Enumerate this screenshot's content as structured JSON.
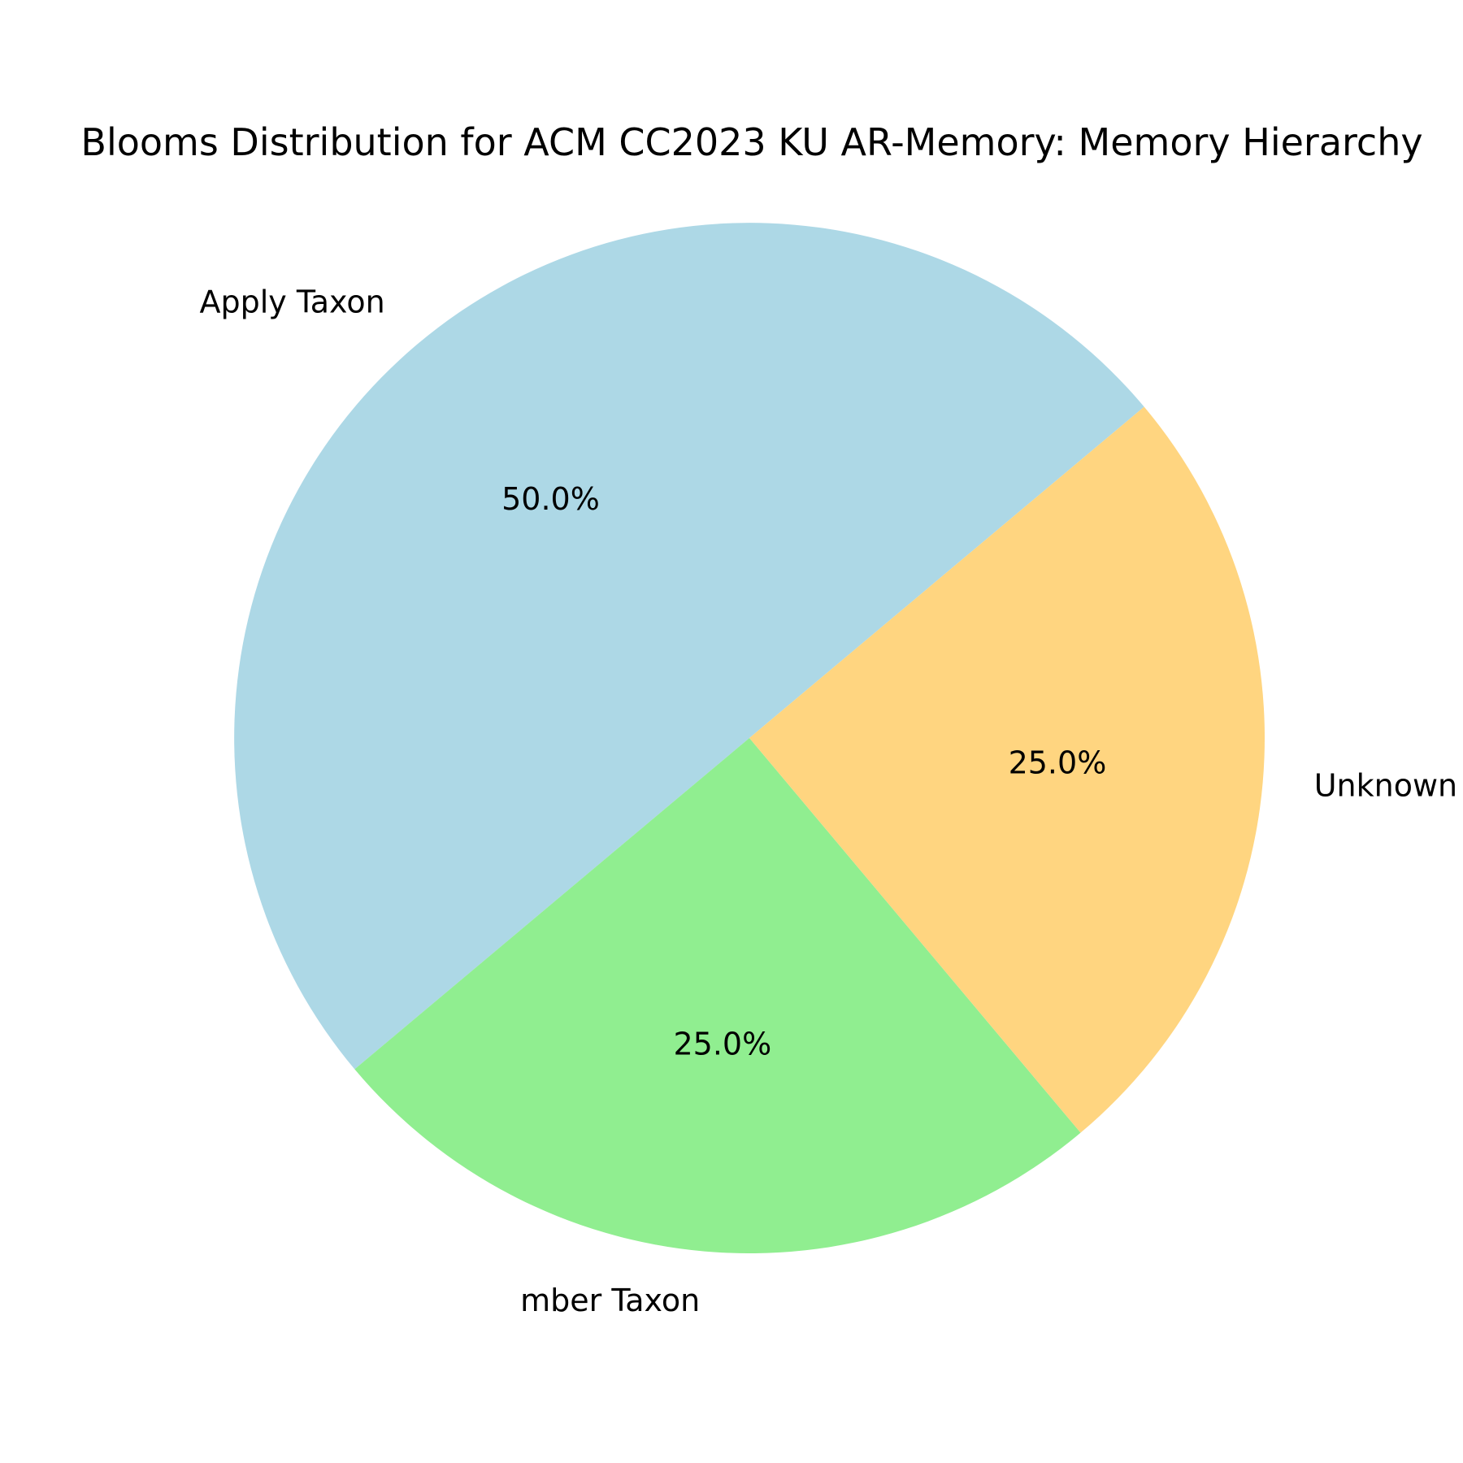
{
  "chart_data": {
    "type": "pie",
    "title": "Blooms Distribution for ACM CC2023 KU AR-Memory: Memory Hierarchy",
    "labels": [
      "Apply Taxon",
      "Remember Taxon",
      "Unknown Taxon"
    ],
    "visible_labels": [
      "Apply Taxon",
      "mber Taxon",
      "Unknown Taxon"
    ],
    "values": [
      50.0,
      25.0,
      25.0
    ],
    "percent_labels": [
      "50.0%",
      "25.0%",
      "25.0%"
    ],
    "colors": [
      "#add8e6",
      "#90ee90",
      "#ffd580"
    ],
    "start_angle_deg": 40,
    "direction": "counterclockwise"
  }
}
